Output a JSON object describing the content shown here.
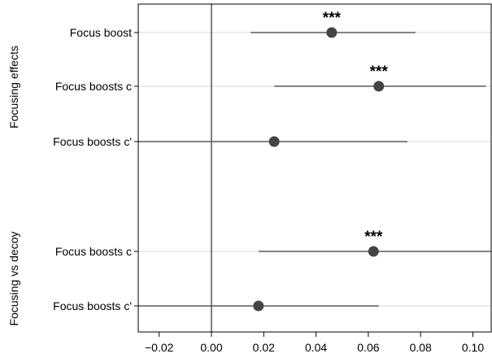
{
  "chart_data": {
    "type": "scatter",
    "subtype": "coefficient-plot-with-confidence-intervals",
    "title": "",
    "xlabel": "",
    "ylabel": "",
    "xlim": [
      -0.028,
      0.107
    ],
    "x_ticks": [
      -0.02,
      0.0,
      0.02,
      0.04,
      0.06,
      0.08,
      0.1
    ],
    "x_tick_labels": [
      "−0.02",
      "0.00",
      "0.02",
      "0.04",
      "0.06",
      "0.08",
      "0.10"
    ],
    "reference_line_x": 0,
    "grid": "horizontal lines at each row",
    "legend": "none",
    "marker_color": "#444444",
    "line_color": "#5a5a5a",
    "grid_color": "#d9d9d9",
    "groups": [
      {
        "label": "Focusing effects",
        "rows": [
          {
            "label": "Focus boost",
            "estimate": 0.046,
            "ci_low": 0.015,
            "ci_high": 0.078,
            "significance": "***"
          },
          {
            "label": "Focus boosts  c",
            "estimate": 0.064,
            "ci_low": 0.024,
            "ci_high": 0.105,
            "significance": "***"
          },
          {
            "label": "Focus boosts c'",
            "estimate": 0.024,
            "ci_low": -0.028,
            "ci_high": 0.075,
            "significance": ""
          }
        ]
      },
      {
        "label": "Focusing vs decoy",
        "rows": [
          {
            "label": "Focus boosts  c",
            "estimate": 0.062,
            "ci_low": 0.018,
            "ci_high": 0.107,
            "significance": "***"
          },
          {
            "label": "Focus boosts c'",
            "estimate": 0.018,
            "ci_low": -0.028,
            "ci_high": 0.064,
            "significance": ""
          }
        ]
      }
    ]
  }
}
